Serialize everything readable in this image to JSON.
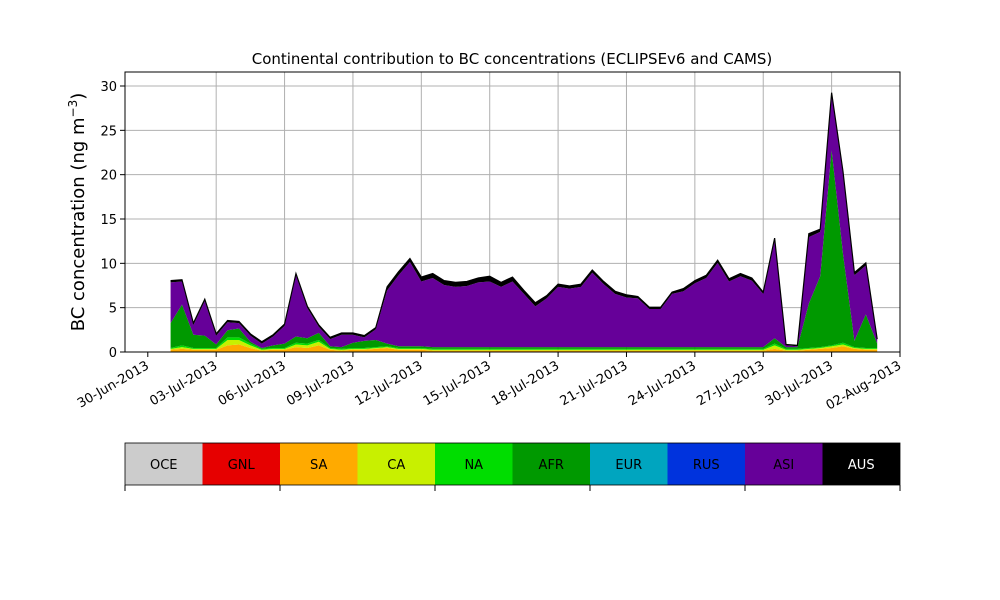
{
  "chart_data": {
    "type": "area",
    "title": "Continental contribution to BC concentrations (ECLIPSEv6 and CAMS)",
    "xlabel": "",
    "ylabel": "BC concentration (ng m",
    "ylabel_sup": "−3",
    "ylabel_close": ")",
    "xlim": [
      "2013-06-29",
      "2013-08-02"
    ],
    "ylim": [
      0,
      30
    ],
    "grid": true,
    "stacked": true,
    "x_ticks": [
      {
        "date": "2013-06-30",
        "label": "30-Jun-2013"
      },
      {
        "date": "2013-07-03",
        "label": "03-Jul-2013"
      },
      {
        "date": "2013-07-06",
        "label": "06-Jul-2013"
      },
      {
        "date": "2013-07-09",
        "label": "09-Jul-2013"
      },
      {
        "date": "2013-07-12",
        "label": "12-Jul-2013"
      },
      {
        "date": "2013-07-15",
        "label": "15-Jul-2013"
      },
      {
        "date": "2013-07-18",
        "label": "18-Jul-2013"
      },
      {
        "date": "2013-07-21",
        "label": "21-Jul-2013"
      },
      {
        "date": "2013-07-24",
        "label": "24-Jul-2013"
      },
      {
        "date": "2013-07-27",
        "label": "27-Jul-2013"
      },
      {
        "date": "2013-07-30",
        "label": "30-Jul-2013"
      },
      {
        "date": "2013-08-02",
        "label": "02-Aug-2013"
      }
    ],
    "y_ticks": [
      {
        "value": 0,
        "label": "0"
      },
      {
        "value": 5,
        "label": "5"
      },
      {
        "value": 10,
        "label": "10"
      },
      {
        "value": 15,
        "label": "15"
      },
      {
        "value": 20,
        "label": "20"
      },
      {
        "value": 25,
        "label": "25"
      },
      {
        "value": 30,
        "label": "30"
      }
    ],
    "x": [
      "2013-07-01",
      "2013-07-01 12:00",
      "2013-07-02",
      "2013-07-02 12:00",
      "2013-07-03",
      "2013-07-03 12:00",
      "2013-07-04",
      "2013-07-04 12:00",
      "2013-07-05",
      "2013-07-05 12:00",
      "2013-07-06",
      "2013-07-06 12:00",
      "2013-07-07",
      "2013-07-07 12:00",
      "2013-07-08",
      "2013-07-08 12:00",
      "2013-07-09",
      "2013-07-09 12:00",
      "2013-07-10",
      "2013-07-10 12:00",
      "2013-07-11",
      "2013-07-11 12:00",
      "2013-07-12",
      "2013-07-12 12:00",
      "2013-07-13",
      "2013-07-13 12:00",
      "2013-07-14",
      "2013-07-14 12:00",
      "2013-07-15",
      "2013-07-15 12:00",
      "2013-07-16",
      "2013-07-16 12:00",
      "2013-07-17",
      "2013-07-17 12:00",
      "2013-07-18",
      "2013-07-18 12:00",
      "2013-07-19",
      "2013-07-19 12:00",
      "2013-07-20",
      "2013-07-20 12:00",
      "2013-07-21",
      "2013-07-21 12:00",
      "2013-07-22",
      "2013-07-22 12:00",
      "2013-07-23",
      "2013-07-23 12:00",
      "2013-07-24",
      "2013-07-24 12:00",
      "2013-07-25",
      "2013-07-25 12:00",
      "2013-07-26",
      "2013-07-26 12:00",
      "2013-07-27",
      "2013-07-27 12:00",
      "2013-07-28",
      "2013-07-28 12:00",
      "2013-07-29",
      "2013-07-29 12:00",
      "2013-07-30",
      "2013-07-30 12:00",
      "2013-07-31",
      "2013-07-31 12:00",
      "2013-08-01"
    ],
    "series": [
      {
        "name": "OCE",
        "color": "#cccccc",
        "values": [
          0.05,
          0.05,
          0.05,
          0.05,
          0.05,
          0.05,
          0.05,
          0.05,
          0.05,
          0.05,
          0.05,
          0.05,
          0.05,
          0.05,
          0.05,
          0.05,
          0.05,
          0.05,
          0.05,
          0.05,
          0.05,
          0.05,
          0.05,
          0.05,
          0.05,
          0.05,
          0.05,
          0.05,
          0.05,
          0.05,
          0.05,
          0.05,
          0.05,
          0.05,
          0.05,
          0.05,
          0.05,
          0.05,
          0.05,
          0.05,
          0.05,
          0.05,
          0.05,
          0.05,
          0.05,
          0.05,
          0.05,
          0.05,
          0.05,
          0.05,
          0.05,
          0.05,
          0.05,
          0.05,
          0.05,
          0.05,
          0.05,
          0.05,
          0.05,
          0.05,
          0.05,
          0.05,
          0.05
        ]
      },
      {
        "name": "GNL",
        "color": "#e60000",
        "values": [
          0,
          0,
          0,
          0,
          0,
          0,
          0,
          0,
          0,
          0,
          0,
          0,
          0,
          0,
          0,
          0,
          0,
          0,
          0,
          0,
          0,
          0,
          0,
          0,
          0,
          0,
          0,
          0,
          0,
          0,
          0,
          0,
          0,
          0,
          0,
          0,
          0,
          0,
          0,
          0,
          0,
          0,
          0,
          0,
          0,
          0,
          0,
          0,
          0,
          0,
          0,
          0,
          0,
          0,
          0,
          0,
          0,
          0,
          0,
          0,
          0,
          0,
          0
        ]
      },
      {
        "name": "SA",
        "color": "#ffaa00",
        "values": [
          0.2,
          0.3,
          0.2,
          0.2,
          0.2,
          0.7,
          0.8,
          0.4,
          0.1,
          0.2,
          0.2,
          0.5,
          0.4,
          0.7,
          0.2,
          0.1,
          0.2,
          0.2,
          0.3,
          0.4,
          0.2,
          0.2,
          0.2,
          0.1,
          0.1,
          0.1,
          0.1,
          0.1,
          0.1,
          0.1,
          0.1,
          0.1,
          0.1,
          0.1,
          0.1,
          0.1,
          0.1,
          0.1,
          0.1,
          0.1,
          0.1,
          0.1,
          0.1,
          0.1,
          0.1,
          0.1,
          0.1,
          0.1,
          0.1,
          0.1,
          0.1,
          0.1,
          0.1,
          0.3,
          0.1,
          0.1,
          0.2,
          0.3,
          0.4,
          0.6,
          0.3,
          0.2,
          0.2
        ]
      },
      {
        "name": "CA",
        "color": "#c8f000",
        "values": [
          0.1,
          0.2,
          0.1,
          0.1,
          0.1,
          0.6,
          0.5,
          0.3,
          0.1,
          0.1,
          0.1,
          0.3,
          0.3,
          0.4,
          0.1,
          0.1,
          0.1,
          0.1,
          0.1,
          0.1,
          0.1,
          0.1,
          0.1,
          0.1,
          0.1,
          0.1,
          0.1,
          0.1,
          0.1,
          0.1,
          0.1,
          0.1,
          0.1,
          0.1,
          0.1,
          0.1,
          0.1,
          0.1,
          0.1,
          0.1,
          0.1,
          0.1,
          0.1,
          0.1,
          0.1,
          0.1,
          0.1,
          0.1,
          0.1,
          0.1,
          0.1,
          0.1,
          0.1,
          0.4,
          0.1,
          0.1,
          0.1,
          0.1,
          0.2,
          0.2,
          0.1,
          0.1,
          0.1
        ]
      },
      {
        "name": "NA",
        "color": "#00dd00",
        "values": [
          0.1,
          0.2,
          0.1,
          0.1,
          0.1,
          0.3,
          0.3,
          0.2,
          0.1,
          0.1,
          0.1,
          0.2,
          0.2,
          0.2,
          0.1,
          0.1,
          0.1,
          0.1,
          0.1,
          0.1,
          0.1,
          0.1,
          0.1,
          0.1,
          0.1,
          0.1,
          0.1,
          0.1,
          0.1,
          0.1,
          0.1,
          0.1,
          0.1,
          0.1,
          0.1,
          0.1,
          0.1,
          0.1,
          0.1,
          0.1,
          0.1,
          0.1,
          0.1,
          0.1,
          0.1,
          0.1,
          0.1,
          0.1,
          0.1,
          0.1,
          0.1,
          0.1,
          0.1,
          0.2,
          0.1,
          0.1,
          0.1,
          0.1,
          0.1,
          0.2,
          0.1,
          0.1,
          0.1
        ]
      },
      {
        "name": "AFR",
        "color": "#009900",
        "values": [
          2.8,
          4.6,
          1.5,
          1.4,
          0.4,
          0.8,
          1.0,
          0.2,
          0.1,
          0.3,
          0.5,
          0.7,
          0.6,
          0.8,
          0.2,
          0.2,
          0.6,
          0.8,
          0.8,
          0.3,
          0.2,
          0.2,
          0.2,
          0.2,
          0.2,
          0.2,
          0.2,
          0.2,
          0.2,
          0.2,
          0.2,
          0.2,
          0.2,
          0.2,
          0.2,
          0.2,
          0.2,
          0.2,
          0.2,
          0.2,
          0.2,
          0.2,
          0.2,
          0.2,
          0.2,
          0.2,
          0.2,
          0.2,
          0.2,
          0.2,
          0.2,
          0.2,
          0.2,
          0.6,
          0.2,
          0.2,
          5.0,
          8.0,
          22.0,
          10.0,
          0.7,
          3.8,
          0.5
        ]
      },
      {
        "name": "EUR",
        "color": "#00a5bf",
        "values": [
          0,
          0,
          0,
          0,
          0,
          0,
          0,
          0,
          0,
          0,
          0,
          0,
          0,
          0,
          0,
          0,
          0,
          0,
          0,
          0,
          0,
          0,
          0,
          0,
          0,
          0,
          0,
          0,
          0,
          0,
          0,
          0,
          0,
          0,
          0,
          0,
          0,
          0,
          0,
          0,
          0,
          0,
          0,
          0,
          0,
          0,
          0,
          0,
          0,
          0,
          0,
          0,
          0,
          0,
          0,
          0,
          0,
          0,
          0,
          0,
          0,
          0,
          0
        ]
      },
      {
        "name": "RUS",
        "color": "#0033dd",
        "values": [
          0,
          0,
          0,
          0,
          0,
          0,
          0,
          0,
          0,
          0,
          0,
          0,
          0,
          0,
          0,
          0,
          0,
          0,
          0,
          0,
          0,
          0,
          0,
          0,
          0,
          0,
          0,
          0,
          0,
          0,
          0,
          0,
          0,
          0,
          0,
          0,
          0,
          0,
          0,
          0,
          0,
          0,
          0,
          0,
          0,
          0,
          0,
          0,
          0,
          0,
          0,
          0,
          0,
          0,
          0,
          0,
          0,
          0,
          0,
          0,
          0,
          0,
          0
        ]
      },
      {
        "name": "ASI",
        "color": "#660099",
        "values": [
          4.6,
          2.6,
          1.1,
          3.9,
          1.0,
          0.9,
          0.6,
          0.7,
          0.5,
          1.0,
          2.0,
          6.9,
          3.4,
          0.7,
          0.8,
          1.4,
          0.9,
          0.4,
          1.2,
          6.0,
          8.0,
          9.5,
          7.3,
          7.8,
          7.0,
          6.8,
          6.9,
          7.3,
          7.4,
          6.8,
          7.4,
          6.0,
          4.6,
          5.5,
          6.8,
          6.6,
          6.8,
          8.4,
          7.1,
          6.0,
          5.6,
          5.5,
          4.3,
          4.3,
          6.0,
          6.3,
          7.2,
          7.8,
          9.5,
          7.4,
          8.0,
          7.5,
          6.0,
          11.0,
          0.2,
          0.1,
          7.5,
          5.0,
          6.2,
          9.0,
          7.4,
          5.5,
          0.4
        ]
      },
      {
        "name": "AUS",
        "color": "#000000",
        "values": [
          0.2,
          0.2,
          0.2,
          0.2,
          0.2,
          0.2,
          0.2,
          0.2,
          0.2,
          0.2,
          0.2,
          0.2,
          0.2,
          0.2,
          0.2,
          0.2,
          0.2,
          0.2,
          0.2,
          0.4,
          0.4,
          0.4,
          0.5,
          0.5,
          0.5,
          0.5,
          0.5,
          0.5,
          0.6,
          0.5,
          0.5,
          0.4,
          0.4,
          0.3,
          0.3,
          0.3,
          0.3,
          0.3,
          0.3,
          0.3,
          0.3,
          0.2,
          0.2,
          0.2,
          0.2,
          0.3,
          0.3,
          0.3,
          0.3,
          0.3,
          0.3,
          0.3,
          0.2,
          0.3,
          0.1,
          0.1,
          0.4,
          0.3,
          0.3,
          0.3,
          0.3,
          0.3,
          0.1
        ]
      }
    ],
    "legend": {
      "placement": "bottom",
      "entries": [
        {
          "name": "OCE",
          "color": "#cccccc"
        },
        {
          "name": "GNL",
          "color": "#e60000"
        },
        {
          "name": "SA",
          "color": "#ffaa00"
        },
        {
          "name": "CA",
          "color": "#c8f000"
        },
        {
          "name": "NA",
          "color": "#00dd00"
        },
        {
          "name": "AFR",
          "color": "#009900"
        },
        {
          "name": "EUR",
          "color": "#00a5bf"
        },
        {
          "name": "RUS",
          "color": "#0033dd"
        },
        {
          "name": "ASI",
          "color": "#660099"
        },
        {
          "name": "AUS",
          "color": "#000000"
        }
      ]
    }
  }
}
